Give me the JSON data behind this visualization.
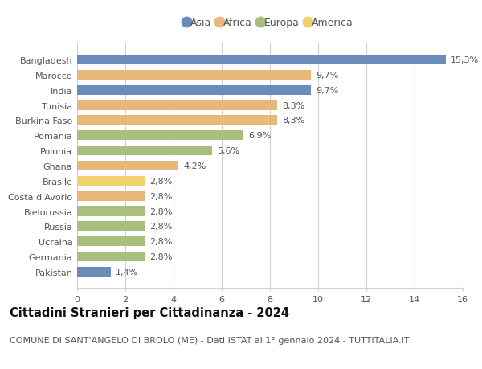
{
  "countries": [
    "Bangladesh",
    "Marocco",
    "India",
    "Tunisia",
    "Burkina Faso",
    "Romania",
    "Polonia",
    "Ghana",
    "Brasile",
    "Costa d'Avorio",
    "Bielorussia",
    "Russia",
    "Ucraina",
    "Germania",
    "Pakistan"
  ],
  "values": [
    15.3,
    9.7,
    9.7,
    8.3,
    8.3,
    6.9,
    5.6,
    4.2,
    2.8,
    2.8,
    2.8,
    2.8,
    2.8,
    2.8,
    1.4
  ],
  "labels": [
    "15,3%",
    "9,7%",
    "9,7%",
    "8,3%",
    "8,3%",
    "6,9%",
    "5,6%",
    "4,2%",
    "2,8%",
    "2,8%",
    "2,8%",
    "2,8%",
    "2,8%",
    "2,8%",
    "1,4%"
  ],
  "continents": [
    "Asia",
    "Africa",
    "Asia",
    "Africa",
    "Africa",
    "Europa",
    "Europa",
    "Africa",
    "America",
    "Africa",
    "Europa",
    "Europa",
    "Europa",
    "Europa",
    "Asia"
  ],
  "colors": {
    "Asia": "#6b8cba",
    "Africa": "#e8b87a",
    "Europa": "#a8bf7e",
    "America": "#f0d070"
  },
  "xlim": [
    0,
    16
  ],
  "xticks": [
    0,
    2,
    4,
    6,
    8,
    10,
    12,
    14,
    16
  ],
  "title": "Cittadini Stranieri per Cittadinanza - 2024",
  "subtitle": "COMUNE DI SANT'ANGELO DI BROLO (ME) - Dati ISTAT al 1° gennaio 2024 - TUTTITALIA.IT",
  "background_color": "#ffffff",
  "grid_color": "#d0d0d0",
  "title_fontsize": 10.5,
  "subtitle_fontsize": 8,
  "label_fontsize": 8,
  "tick_fontsize": 8,
  "legend_fontsize": 9,
  "bar_height": 0.65
}
